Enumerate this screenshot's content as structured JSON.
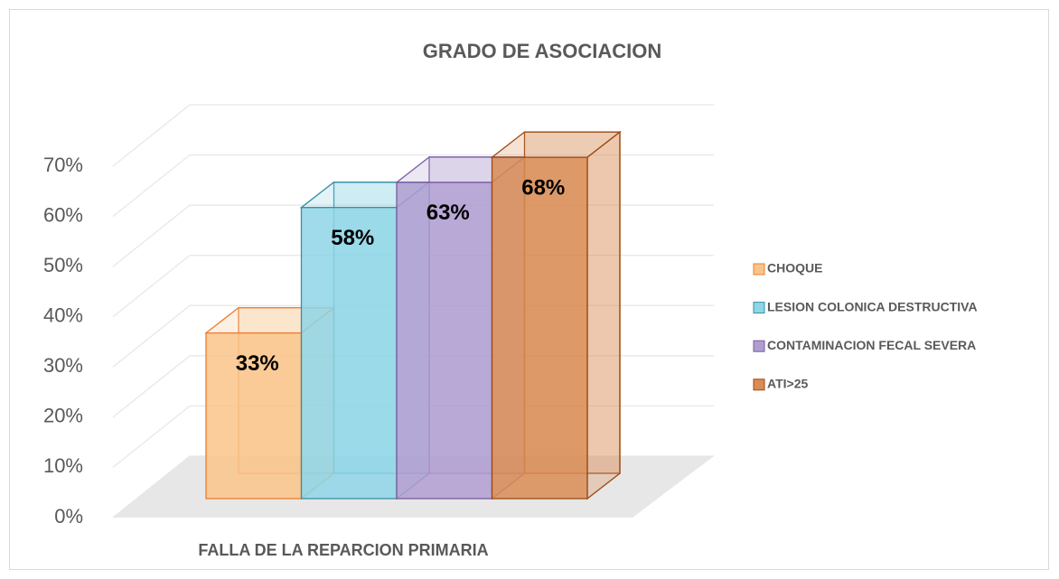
{
  "chart_data": {
    "type": "bar3d",
    "title": "GRADO DE ASOCIACION",
    "categories": [
      "FALLA DE LA REPARCION PRIMARIA"
    ],
    "series": [
      {
        "name": "CHOQUE",
        "color": "#f9c48a",
        "values": [
          33
        ],
        "value_labels": [
          "33%"
        ]
      },
      {
        "name": "LESION COLONICA DESTRUCTIVA",
        "color": "#8ed5e6",
        "values": [
          58
        ],
        "value_labels": [
          "58%"
        ]
      },
      {
        "name": "CONTAMINACION FECAL SEVERA",
        "color": "#b09ed0",
        "values": [
          63
        ],
        "value_labels": [
          "63%"
        ]
      },
      {
        "name": "ATI>25",
        "color": "#d98c55",
        "values": [
          68
        ],
        "value_labels": [
          "68%"
        ]
      }
    ],
    "ylim": [
      0,
      70
    ],
    "yticks": [
      {
        "value": 0,
        "label": "0%"
      },
      {
        "value": 10,
        "label": "10%"
      },
      {
        "value": 20,
        "label": "20%"
      },
      {
        "value": 30,
        "label": "30%"
      },
      {
        "value": 40,
        "label": "40%"
      },
      {
        "value": 50,
        "label": "50%"
      },
      {
        "value": 60,
        "label": "60%"
      },
      {
        "value": 70,
        "label": "70%"
      }
    ],
    "grid": true,
    "legend": "right"
  }
}
